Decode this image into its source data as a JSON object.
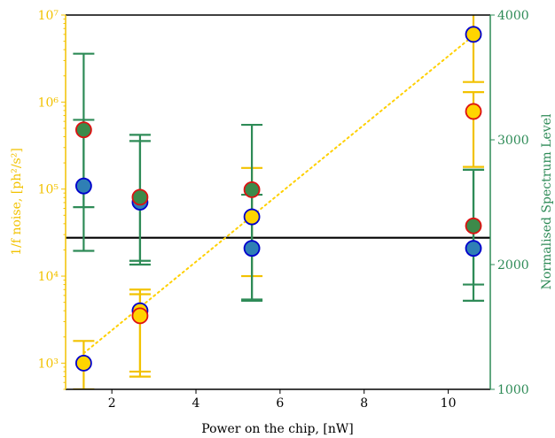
{
  "colors": {
    "yellow": "#f2c200",
    "yellow_fill": "#ffd400",
    "green": "#2e8b57",
    "green_marker": "#3d8a4a",
    "blue_marker_edge": "#0000cc",
    "blue_marker_fill": "#2f7fb5",
    "red_edge": "#dd1111",
    "dotted": "#ffd000",
    "black": "#000000"
  },
  "chart_data": {
    "type": "scatter",
    "xlabel": "Power on the chip, [nW]",
    "ylabel_left": "1/f noise, [ph²/s²]",
    "ylabel_right": "Normalised Spectrum Level",
    "xlim": [
      0.9,
      11.0
    ],
    "ylim_left": [
      500,
      10000000
    ],
    "ylim_left_scale": "log",
    "ylim_right": [
      1000,
      4000
    ],
    "x_ticks": [
      2,
      4,
      6,
      8,
      10
    ],
    "x_tick_labels": [
      "2",
      "4",
      "6",
      "8",
      "10"
    ],
    "y_left_ticks": [
      1000,
      10000,
      100000,
      1000000,
      10000000
    ],
    "y_left_tick_labels": [
      "10³",
      "10⁴",
      "10⁵",
      "10⁶",
      "10⁷"
    ],
    "y_right_ticks": [
      1000,
      2000,
      3000,
      4000
    ],
    "y_right_tick_labels": [
      "1000",
      "2000",
      "3000",
      "4000"
    ],
    "x": [
      1.33,
      2.67,
      5.33,
      10.6
    ],
    "series": [
      {
        "axis": "left",
        "marker": "blue-edge-yellow-fill",
        "values": [
          1000,
          4000,
          48000,
          6000000
        ],
        "err_low": [
          500,
          700,
          10000,
          1700000
        ],
        "err_high": [
          1800,
          7000,
          175000,
          14000000
        ]
      },
      {
        "axis": "left",
        "marker": "red-edge-yellow-fill",
        "values": [
          null,
          3500,
          null,
          780000
        ],
        "err_low": [
          null,
          800,
          null,
          180000
        ],
        "err_high": [
          null,
          6200,
          null,
          1300000
        ]
      },
      {
        "axis": "right",
        "marker": "blue-edge-blue-fill",
        "values": [
          2630,
          2500,
          2130,
          2130
        ],
        "err_low": [
          2110,
          2000,
          1710,
          1710
        ],
        "err_high": [
          3160,
          2990,
          2560,
          2760
        ]
      },
      {
        "axis": "right",
        "marker": "red-edge-green-fill",
        "values": [
          3080,
          2540,
          2600,
          2310
        ],
        "err_low": [
          2460,
          2030,
          1720,
          1840
        ],
        "err_high": [
          3690,
          3040,
          3120,
          2760
        ]
      }
    ],
    "fit_line": {
      "axis": "left",
      "style": "dotted",
      "x": [
        1.33,
        10.6
      ],
      "y": [
        1300,
        5800000
      ]
    },
    "hline": {
      "axis": "right",
      "y": 2215
    },
    "grid": false,
    "legend": "none"
  }
}
